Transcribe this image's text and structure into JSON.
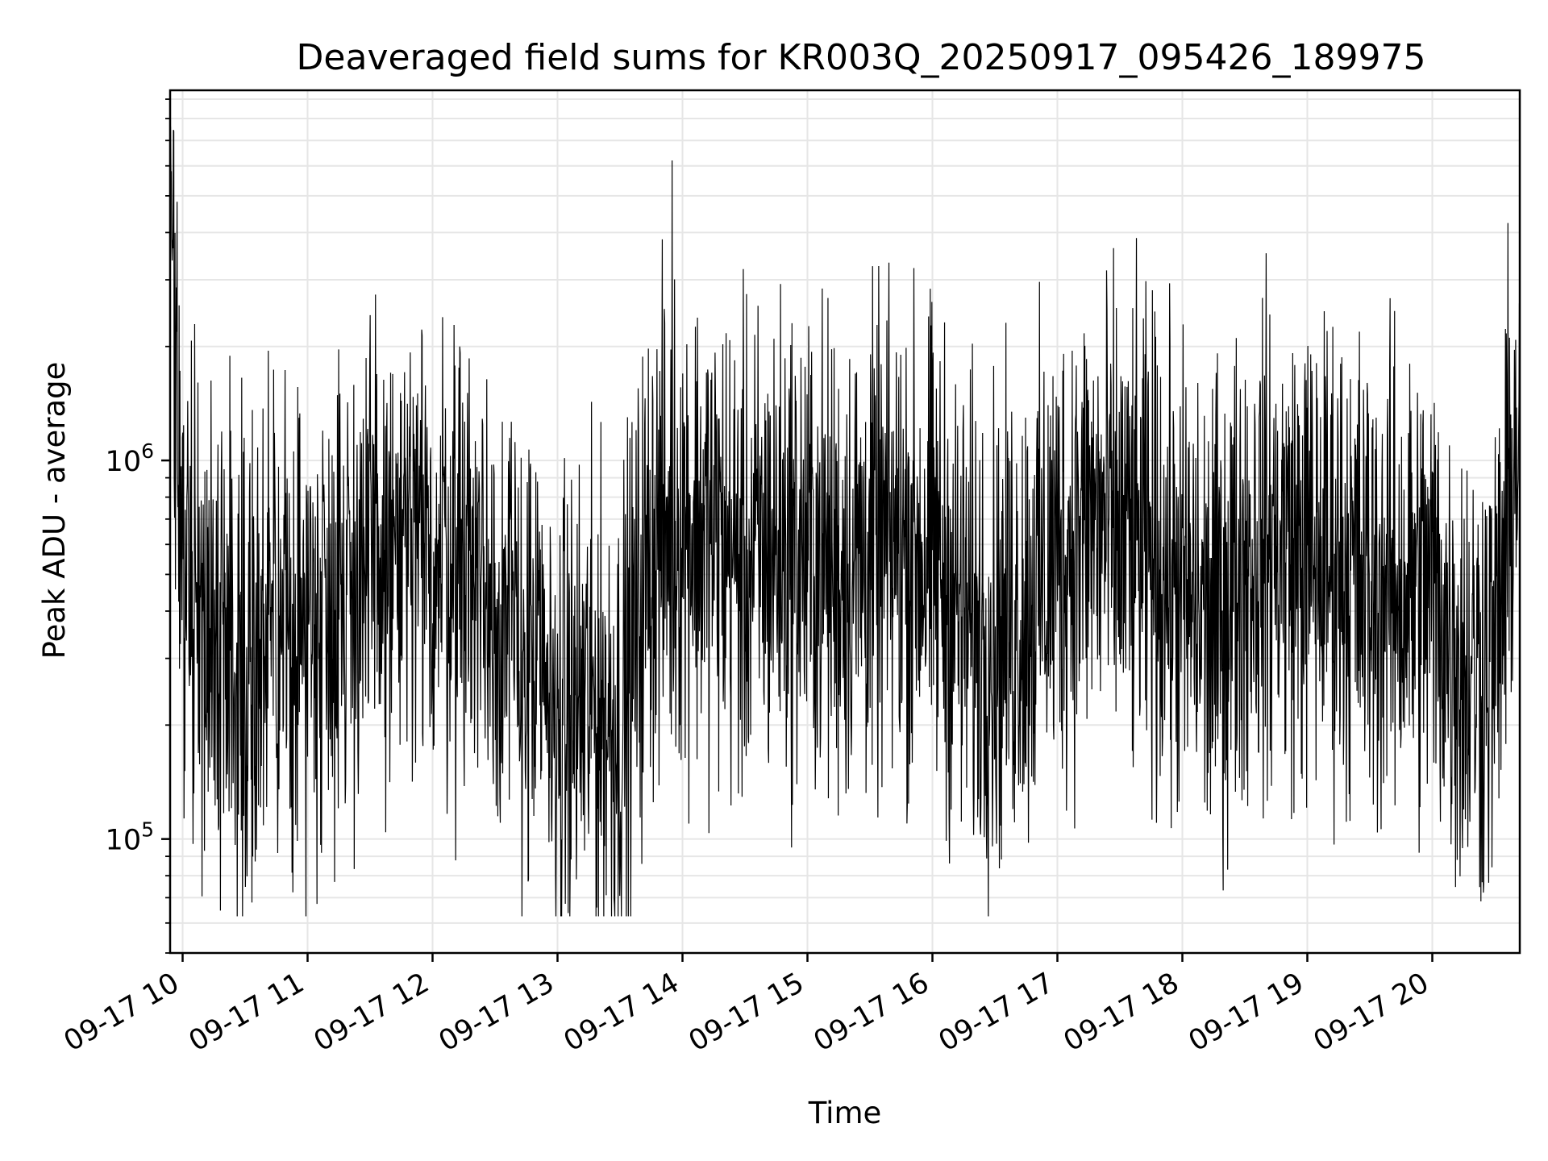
{
  "chart_data": {
    "type": "line",
    "title": "Deaveraged field sums for KR003Q_20250917_095426_189975",
    "xlabel": "Time",
    "ylabel": "Peak ADU - average",
    "x_tick_labels": [
      "09-17 10",
      "09-17 11",
      "09-17 12",
      "09-17 13",
      "09-17 14",
      "09-17 15",
      "09-17 16",
      "09-17 17",
      "09-17 18",
      "09-17 19",
      "09-17 20"
    ],
    "x_ticks": [
      "2025-09-17 10:00",
      "2025-09-17 11:00",
      "2025-09-17 12:00",
      "2025-09-17 13:00",
      "2025-09-17 14:00",
      "2025-09-17 15:00",
      "2025-09-17 16:00",
      "2025-09-17 17:00",
      "2025-09-17 18:00",
      "2025-09-17 19:00",
      "2025-09-17 20:00"
    ],
    "xlim": [
      "2025-09-17 09:54",
      "2025-09-17 20:42"
    ],
    "y_scale": "log",
    "y_tick_labels": [
      {
        "base": "10",
        "exp": "5"
      },
      {
        "base": "10",
        "exp": "6"
      }
    ],
    "y_ticks": [
      100000,
      1000000
    ],
    "ylim": [
      50000,
      9500000
    ],
    "grid": true,
    "line_color": "#000000",
    "grid_color": "#e6e6e6",
    "series": [
      {
        "x": [
          "2025-09-17 09:54",
          "2025-09-17 09:56",
          "2025-09-17 09:58",
          "2025-09-17 10:05",
          "2025-09-17 10:15",
          "2025-09-17 10:30",
          "2025-09-17 10:45",
          "2025-09-17 11:00",
          "2025-09-17 11:15",
          "2025-09-17 11:30",
          "2025-09-17 11:45",
          "2025-09-17 12:00",
          "2025-09-17 12:15",
          "2025-09-17 12:30",
          "2025-09-17 12:45",
          "2025-09-17 13:00",
          "2025-09-17 13:15",
          "2025-09-17 13:30",
          "2025-09-17 13:45",
          "2025-09-17 14:00",
          "2025-09-17 14:15",
          "2025-09-17 14:30",
          "2025-09-17 14:45",
          "2025-09-17 15:00",
          "2025-09-17 15:15",
          "2025-09-17 15:30",
          "2025-09-17 15:45",
          "2025-09-17 16:00",
          "2025-09-17 16:15",
          "2025-09-17 16:30",
          "2025-09-17 16:45",
          "2025-09-17 17:00",
          "2025-09-17 17:15",
          "2025-09-17 17:30",
          "2025-09-17 17:45",
          "2025-09-17 18:00",
          "2025-09-17 18:15",
          "2025-09-17 18:30",
          "2025-09-17 18:45",
          "2025-09-17 19:00",
          "2025-09-17 19:15",
          "2025-09-17 19:30",
          "2025-09-17 19:45",
          "2025-09-17 20:00",
          "2025-09-17 20:15",
          "2025-09-17 20:30",
          "2025-09-17 20:42"
        ],
        "y": [
          7800000,
          1800000,
          800000,
          480000,
          350000,
          300000,
          330000,
          380000,
          480000,
          520000,
          560000,
          540000,
          600000,
          420000,
          300000,
          200000,
          230000,
          200000,
          600000,
          700000,
          640000,
          520000,
          600000,
          580000,
          520000,
          560000,
          600000,
          560000,
          380000,
          340000,
          420000,
          560000,
          700000,
          620000,
          560000,
          440000,
          360000,
          560000,
          600000,
          560000,
          560000,
          460000,
          460000,
          460000,
          280000,
          300000,
          1400000
        ]
      }
    ]
  }
}
